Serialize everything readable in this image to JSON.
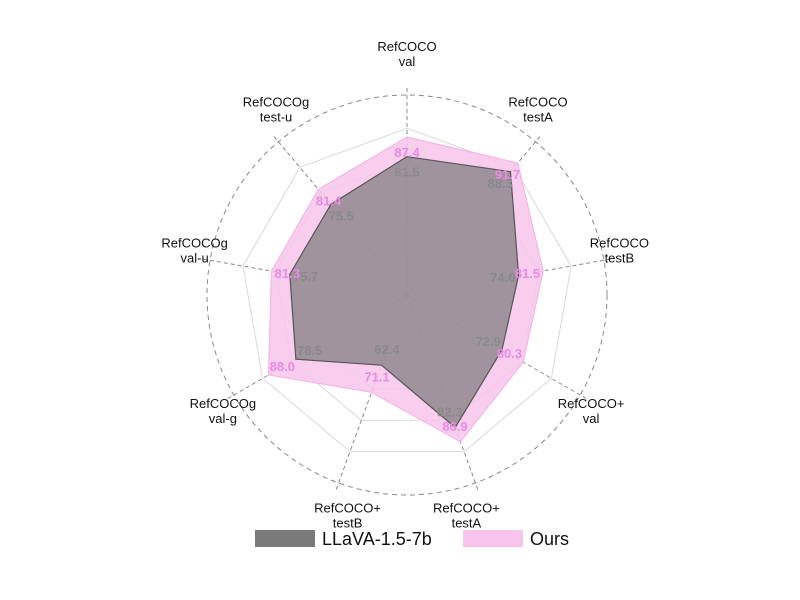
{
  "chart_data": {
    "type": "radar",
    "axes": [
      [
        "RefCOCO",
        "val"
      ],
      [
        "RefCOCO",
        "testA"
      ],
      [
        "RefCOCO",
        "testB"
      ],
      [
        "RefCOCO+",
        "val"
      ],
      [
        "RefCOCO+",
        "testA"
      ],
      [
        "RefCOCO+",
        "testB"
      ],
      [
        "RefCOCOg",
        "val-g"
      ],
      [
        "RefCOCOg",
        "val-u"
      ],
      [
        "RefCOCOg",
        "test-u"
      ]
    ],
    "series": [
      {
        "name": "LLaVA-1.5-7b",
        "values": [
          81.5,
          88.3,
          74.0,
          72.9,
          82.3,
          62.4,
          78.5,
          75.7,
          75.5
        ],
        "labels": [
          "81.5",
          "88.3",
          "74.0",
          "72.9",
          "82.3",
          "62.4",
          "78.5",
          "75.7",
          "75.5"
        ],
        "color": "#7a7a7a"
      },
      {
        "name": "Ours",
        "values": [
          87.4,
          91.7,
          81.5,
          80.3,
          86.9,
          71.1,
          88.0,
          81.3,
          81.4
        ],
        "labels": [
          "87.4",
          "91.7",
          "81.5",
          "80.3",
          "86.9",
          "71.1",
          "88.0",
          "81.3",
          "81.4"
        ],
        "color": "#f7c4eb"
      }
    ],
    "rlim": [
      40,
      100
    ],
    "grid": true,
    "legend": "bottom"
  }
}
